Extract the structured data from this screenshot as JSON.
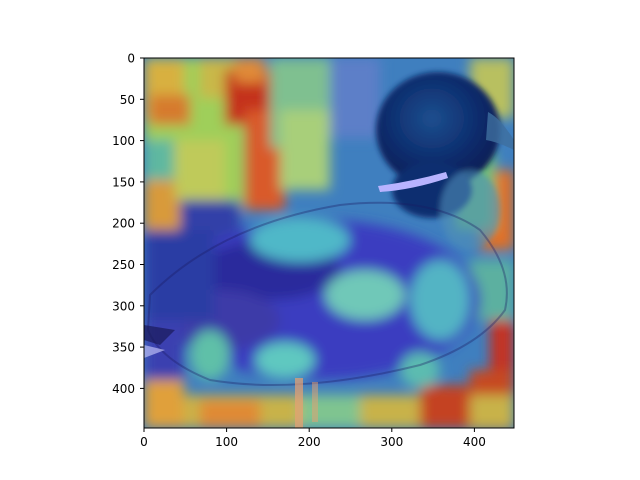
{
  "figure": {
    "background": "#ffffff",
    "content": "heatmap overlay (jet colormap) on a photo of a mallard duck"
  },
  "axes": {
    "x_ticks": [
      "0",
      "100",
      "200",
      "300",
      "400"
    ],
    "y_ticks": [
      "0",
      "50",
      "100",
      "150",
      "200",
      "250",
      "300",
      "350",
      "400"
    ],
    "x_range": [
      0,
      448
    ],
    "y_range": [
      0,
      448
    ],
    "y_inverted": true
  },
  "colors": {
    "jet_low": "#00007f",
    "jet_mid": "#2bd4b8",
    "jet_high": "#b30000",
    "duck_head": "#0c2a66",
    "neck_ring": "#b8b3ff"
  }
}
